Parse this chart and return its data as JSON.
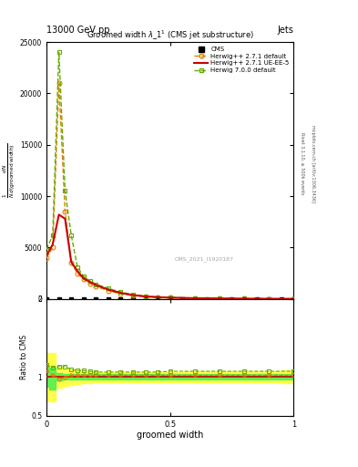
{
  "title": "13000 GeV pp",
  "title_right": "Jets",
  "xlabel": "groomed width",
  "right_label1": "Rivet 3.1.10, ≥ 500k events",
  "right_label2": "mcplots.cern.ch [arXiv:1306.3436]",
  "watermark": "CMS_2021_I1920187",
  "xlim": [
    0,
    1
  ],
  "ylim_main": [
    0,
    25000
  ],
  "ylim_ratio": [
    0.5,
    2.0
  ],
  "x_data": [
    0.0,
    0.025,
    0.05,
    0.075,
    0.1,
    0.125,
    0.15,
    0.175,
    0.2,
    0.25,
    0.3,
    0.35,
    0.4,
    0.45,
    0.5,
    0.6,
    0.7,
    0.8,
    0.9,
    1.0
  ],
  "hw271d": [
    4000,
    5000,
    21000,
    8500,
    3500,
    2500,
    1900,
    1500,
    1200,
    800,
    500,
    320,
    210,
    150,
    110,
    60,
    35,
    18,
    8,
    3
  ],
  "hw271u": [
    4200,
    5300,
    8200,
    7800,
    3600,
    2700,
    2000,
    1650,
    1350,
    900,
    580,
    370,
    240,
    170,
    120,
    68,
    38,
    20,
    9,
    3
  ],
  "hw700d": [
    4800,
    6200,
    24000,
    10500,
    6200,
    3100,
    2200,
    1750,
    1430,
    1020,
    660,
    410,
    265,
    185,
    135,
    78,
    42,
    22,
    9,
    4
  ],
  "hw271d_color": "#E08000",
  "hw271u_color": "#CC0000",
  "hw700d_color": "#66AA00",
  "ratio_hw271d": [
    1.08,
    1.02,
    0.97,
    0.99,
    1.02,
    1.02,
    1.02,
    1.02,
    1.02,
    1.02,
    1.02,
    1.02,
    1.02,
    1.02,
    1.02,
    1.02,
    1.02,
    1.02,
    1.02,
    1.02
  ],
  "ratio_hw700d": [
    1.15,
    1.12,
    1.13,
    1.13,
    1.09,
    1.08,
    1.08,
    1.07,
    1.06,
    1.06,
    1.06,
    1.06,
    1.06,
    1.06,
    1.07,
    1.07,
    1.07,
    1.07,
    1.07,
    1.07
  ],
  "band_y_upper": [
    1.3,
    1.3,
    1.12,
    1.1,
    1.09,
    1.08,
    1.07,
    1.07,
    1.06,
    1.06,
    1.06,
    1.06,
    1.06,
    1.06,
    1.06,
    1.07,
    1.07,
    1.07,
    1.07,
    1.08
  ],
  "band_y_lower": [
    0.7,
    0.68,
    0.86,
    0.88,
    0.9,
    0.91,
    0.92,
    0.92,
    0.93,
    0.93,
    0.93,
    0.93,
    0.93,
    0.93,
    0.93,
    0.93,
    0.93,
    0.93,
    0.93,
    0.92
  ],
  "band_g_upper": [
    1.12,
    1.12,
    1.05,
    1.04,
    1.04,
    1.03,
    1.03,
    1.03,
    1.03,
    1.03,
    1.03,
    1.03,
    1.03,
    1.03,
    1.03,
    1.03,
    1.03,
    1.03,
    1.03,
    1.04
  ],
  "band_g_lower": [
    0.87,
    0.84,
    0.95,
    0.96,
    0.96,
    0.97,
    0.97,
    0.97,
    0.97,
    0.97,
    0.97,
    0.97,
    0.97,
    0.97,
    0.97,
    0.97,
    0.97,
    0.97,
    0.97,
    0.96
  ]
}
